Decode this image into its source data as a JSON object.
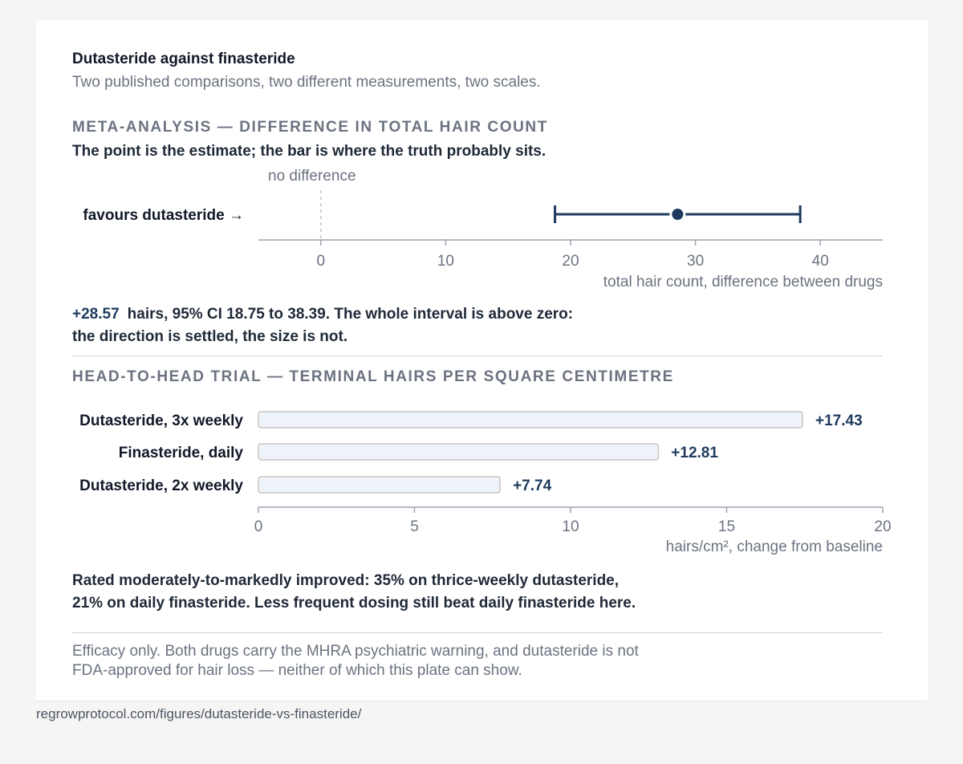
{
  "title": "Dutasteride against finasteride",
  "subtitle": "Two published comparisons, two different measurements, two scales.",
  "meta": {
    "section_title": "META-ANALYSIS — DIFFERENCE IN TOTAL HAIR COUNT",
    "lede": "The point is the estimate; the bar is where the truth probably sits.",
    "estimate_text": "+28.57",
    "note_line1": "hairs, 95% CI 18.75 to 38.39. The whole interval is above zero:",
    "note_line2": "the direction is settled, the size is not."
  },
  "trial": {
    "section_title": "HEAD-TO-HEAD TRIAL — TERMINAL HAIRS PER SQUARE CENTIMETRE",
    "rated_line1": "Rated moderately-to-markedly improved: 35% on thrice-weekly dutasteride,",
    "rated_line2": "21% on daily finasteride. Less frequent dosing still beat daily finasteride here."
  },
  "caveat_line1": "Efficacy only. Both drugs carry the MHRA psychiatric warning, and dutasteride is not",
  "caveat_line2": "FDA-approved for hair loss — neither of which this plate can show.",
  "footer": "regrowprotocol.com/figures/dutasteride-vs-finasteride/",
  "colors": {
    "navy": "#1e3a5f",
    "bar_fill": "#eef2f9",
    "bar_stroke": "#c8c5c2",
    "axis": "#9ca3af",
    "muted": "#6b7280"
  },
  "chart_data": [
    {
      "type": "scatter",
      "subtype": "forest",
      "estimate": 28.57,
      "ci": [
        18.75,
        38.39
      ],
      "reference_value": 0,
      "reference_label": "no difference",
      "direction_label": "favours dutasteride →",
      "xlabel": "total hair count, difference between drugs",
      "xlim": [
        -5,
        45
      ],
      "xticks": [
        0,
        10,
        20,
        30,
        40
      ]
    },
    {
      "type": "bar",
      "orientation": "horizontal",
      "categories": [
        "Dutasteride, 3x weekly",
        "Finasteride, daily",
        "Dutasteride, 2x weekly"
      ],
      "values": [
        17.43,
        12.81,
        7.74
      ],
      "value_labels": [
        "+17.43",
        "+12.81",
        "+7.74"
      ],
      "xlabel": "hairs/cm², change from baseline",
      "xlim": [
        0,
        20
      ],
      "xticks": [
        0,
        5,
        10,
        15,
        20
      ]
    }
  ]
}
